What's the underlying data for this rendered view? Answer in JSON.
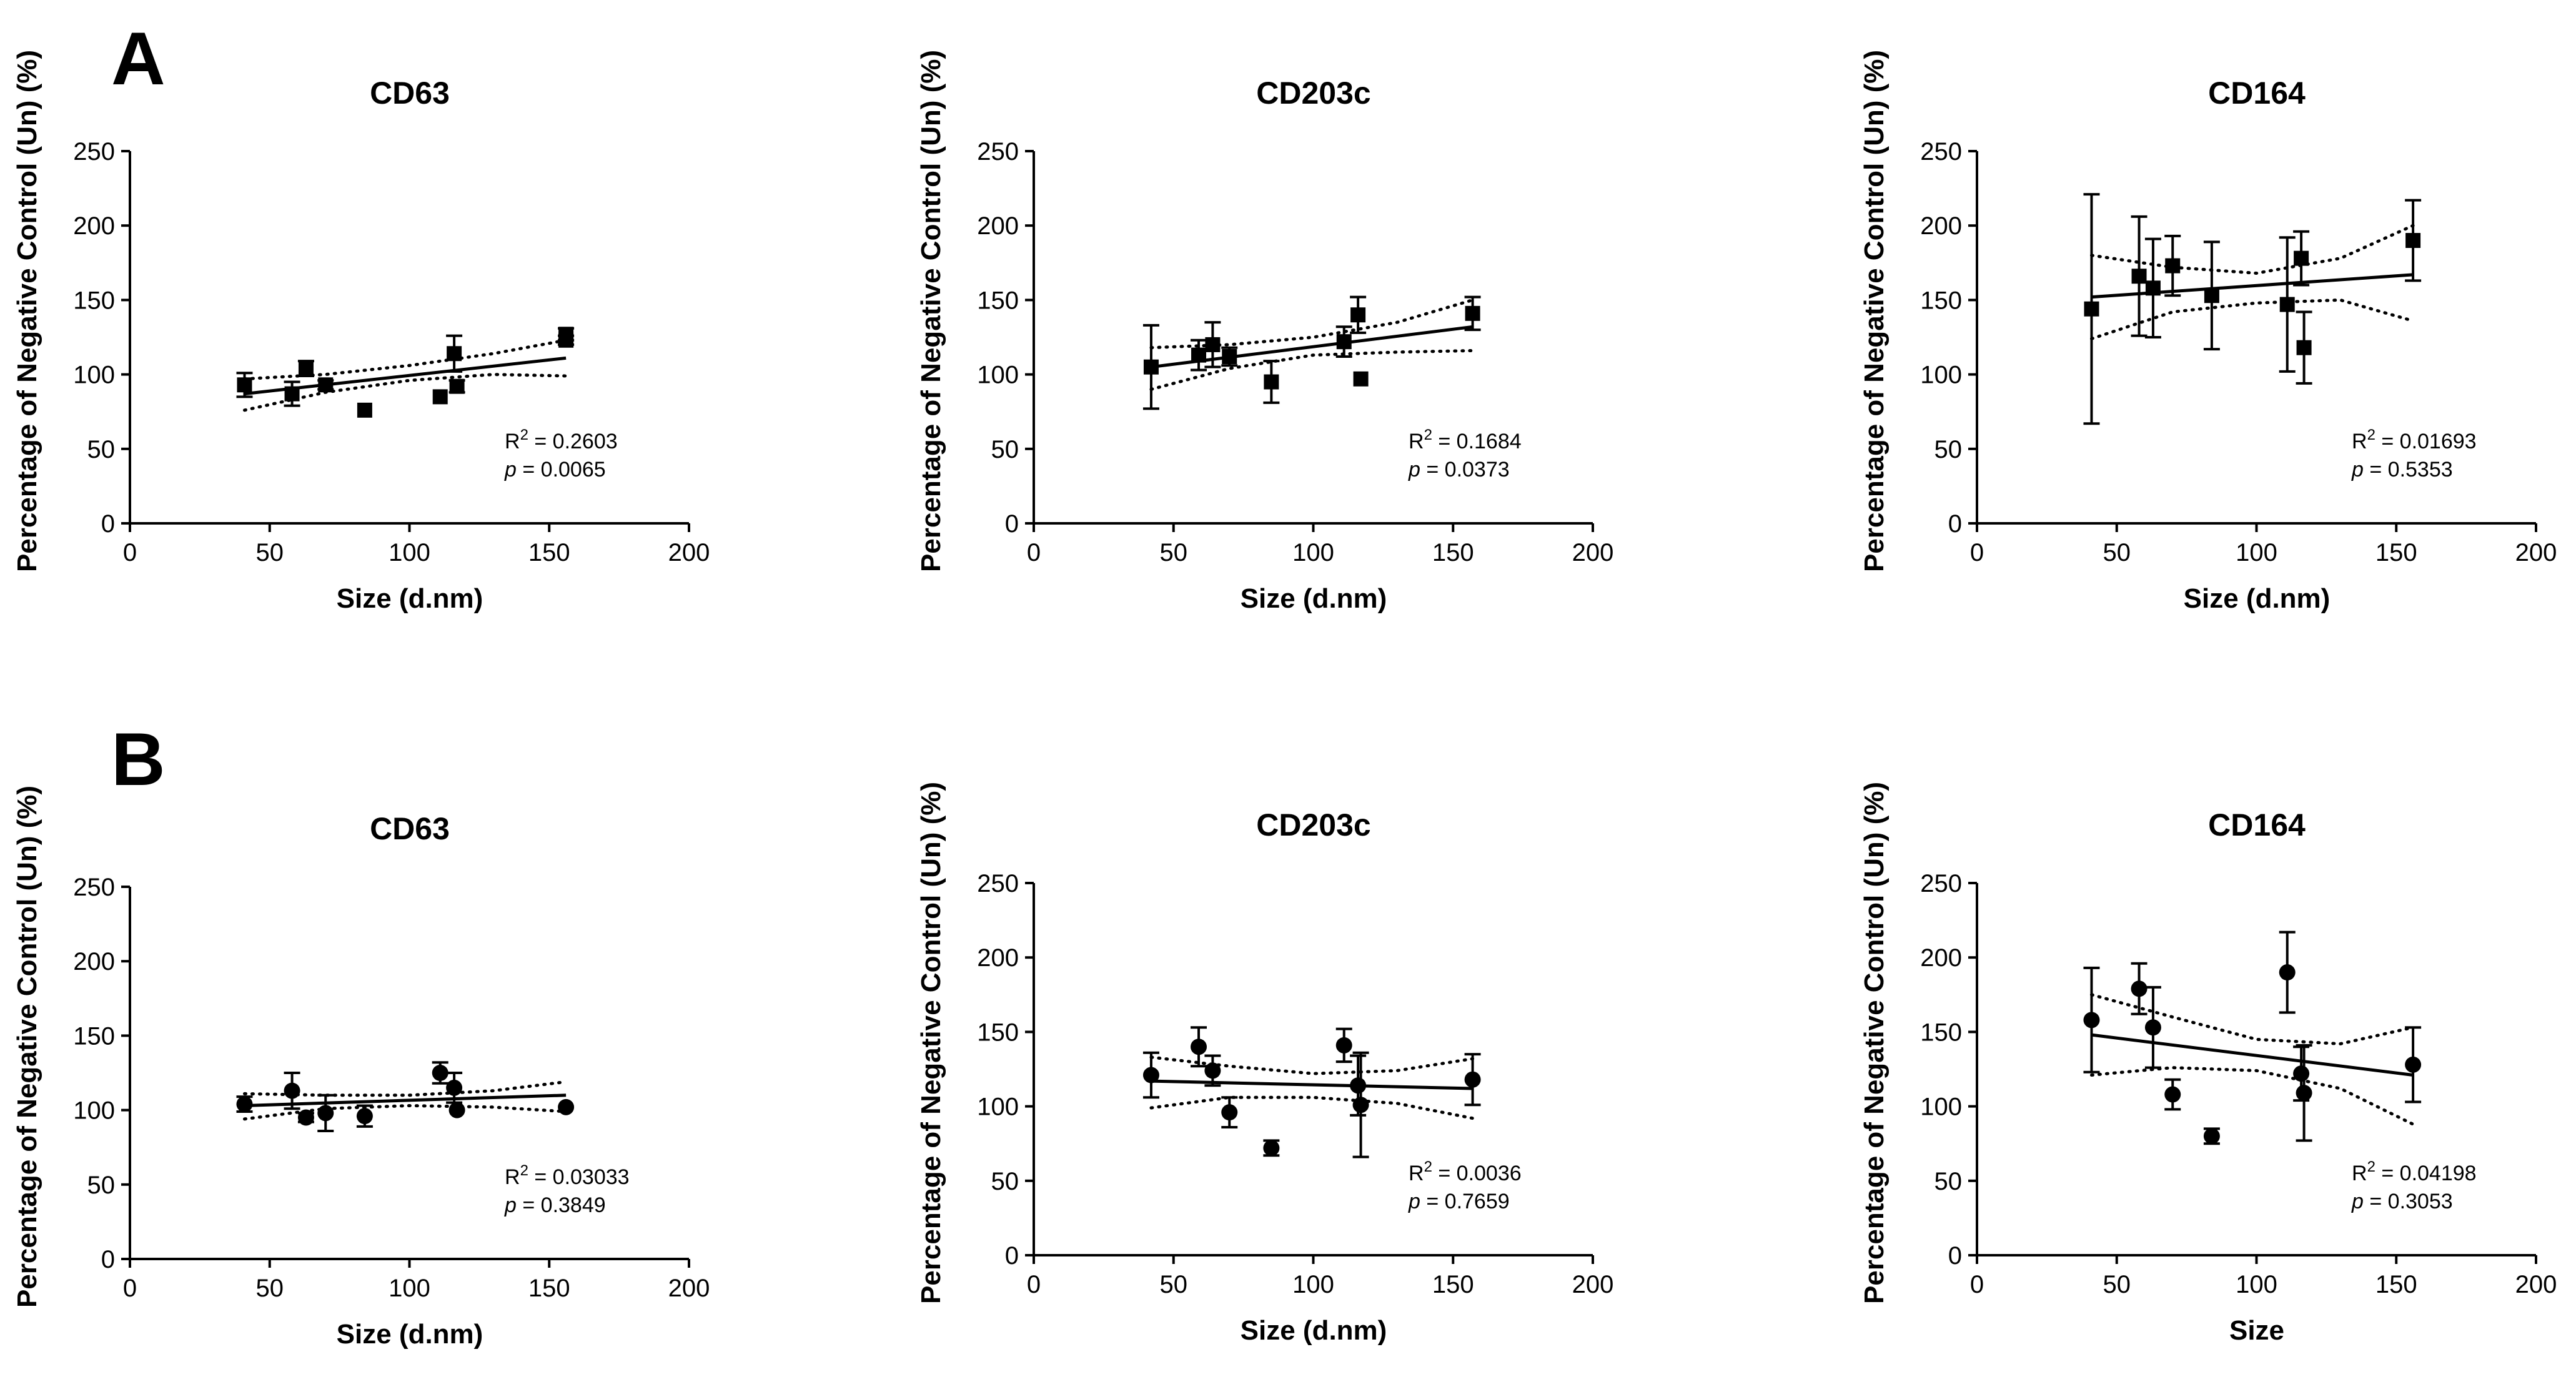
{
  "panels": [
    {
      "letter": "A"
    },
    {
      "letter": "B"
    }
  ],
  "chart_data": [
    {
      "type": "scatter",
      "panel": "A",
      "marker": "square",
      "title": "CD63",
      "xlabel": "Size (d.nm)",
      "ylabel": "Percentage of Negative Control (Un) (%)",
      "xlim": [
        0,
        200
      ],
      "ylim": [
        0,
        250
      ],
      "xticks": [
        0,
        50,
        100,
        150,
        200
      ],
      "yticks": [
        0,
        50,
        100,
        150,
        200,
        250
      ],
      "r2": "= 0.2603",
      "p": "= 0.0065",
      "points": [
        {
          "x": 41,
          "y": 93,
          "err": 8
        },
        {
          "x": 58,
          "y": 87,
          "err": 8
        },
        {
          "x": 63,
          "y": 104,
          "err": 5
        },
        {
          "x": 70,
          "y": 93,
          "err": 3
        },
        {
          "x": 84,
          "y": 76,
          "err": 0
        },
        {
          "x": 111,
          "y": 85,
          "err": 0
        },
        {
          "x": 116,
          "y": 114,
          "err": 12
        },
        {
          "x": 117,
          "y": 92,
          "err": 4
        },
        {
          "x": 156,
          "y": 127,
          "err": 4
        },
        {
          "x": 156,
          "y": 123,
          "err": 3
        }
      ],
      "fit": {
        "x": [
          41,
          156
        ],
        "y": [
          87,
          111
        ]
      },
      "ci_upper": {
        "x": [
          41,
          70,
          100,
          130,
          156
        ],
        "y": [
          97,
          100,
          106,
          114,
          123
        ]
      },
      "ci_lower": {
        "x": [
          41,
          70,
          100,
          130,
          156
        ],
        "y": [
          76,
          88,
          96,
          100,
          99
        ]
      }
    },
    {
      "type": "scatter",
      "panel": "A",
      "marker": "square",
      "title": "CD203c",
      "xlabel": "Size (d.nm)",
      "ylabel": "Percentage of Negative Control (Un) (%)",
      "xlim": [
        0,
        200
      ],
      "ylim": [
        0,
        250
      ],
      "xticks": [
        0,
        50,
        100,
        150,
        200
      ],
      "yticks": [
        0,
        50,
        100,
        150,
        200,
        250
      ],
      "r2": "= 0.1684",
      "p": "= 0.0373",
      "points": [
        {
          "x": 42,
          "y": 105,
          "err": 28
        },
        {
          "x": 59,
          "y": 113,
          "err": 10
        },
        {
          "x": 64,
          "y": 120,
          "err": 15
        },
        {
          "x": 70,
          "y": 112,
          "err": 6
        },
        {
          "x": 85,
          "y": 95,
          "err": 14
        },
        {
          "x": 111,
          "y": 122,
          "err": 10
        },
        {
          "x": 116,
          "y": 140,
          "err": 12
        },
        {
          "x": 117,
          "y": 97,
          "err": 0
        },
        {
          "x": 157,
          "y": 141,
          "err": 11
        }
      ],
      "fit": {
        "x": [
          42,
          157
        ],
        "y": [
          105,
          132
        ]
      },
      "ci_upper": {
        "x": [
          42,
          70,
          100,
          130,
          157
        ],
        "y": [
          118,
          120,
          125,
          135,
          150
        ]
      },
      "ci_lower": {
        "x": [
          42,
          70,
          100,
          130,
          157
        ],
        "y": [
          90,
          104,
          113,
          115,
          116
        ]
      }
    },
    {
      "type": "scatter",
      "panel": "A",
      "marker": "square",
      "title": "CD164",
      "xlabel": "Size (d.nm)",
      "ylabel": "Percentage of Negative Control (Un) (%)",
      "xlim": [
        0,
        200
      ],
      "ylim": [
        0,
        250
      ],
      "xticks": [
        0,
        50,
        100,
        150,
        200
      ],
      "yticks": [
        0,
        50,
        100,
        150,
        200,
        250
      ],
      "r2": "= 0.01693",
      "p": "= 0.5353",
      "points": [
        {
          "x": 41,
          "y": 144,
          "err": 77
        },
        {
          "x": 58,
          "y": 166,
          "err": 40
        },
        {
          "x": 63,
          "y": 158,
          "err": 33
        },
        {
          "x": 70,
          "y": 173,
          "err": 20
        },
        {
          "x": 84,
          "y": 153,
          "err": 36
        },
        {
          "x": 111,
          "y": 147,
          "err": 45
        },
        {
          "x": 116,
          "y": 178,
          "err": 18
        },
        {
          "x": 117,
          "y": 118,
          "err": 24
        },
        {
          "x": 156,
          "y": 190,
          "err": 27
        }
      ],
      "fit": {
        "x": [
          41,
          156
        ],
        "y": [
          152,
          167
        ]
      },
      "ci_upper": {
        "x": [
          41,
          70,
          100,
          130,
          156
        ],
        "y": [
          180,
          172,
          168,
          178,
          200
        ]
      },
      "ci_lower": {
        "x": [
          41,
          70,
          100,
          130,
          156
        ],
        "y": [
          124,
          142,
          148,
          150,
          136
        ]
      }
    },
    {
      "type": "scatter",
      "panel": "B",
      "marker": "circle",
      "title": "CD63",
      "xlabel": "Size (d.nm)",
      "ylabel": "Percentage of Negative Control (Un) (%)",
      "xlim": [
        0,
        200
      ],
      "ylim": [
        0,
        250
      ],
      "xticks": [
        0,
        50,
        100,
        150,
        200
      ],
      "yticks": [
        0,
        50,
        100,
        150,
        200,
        250
      ],
      "r2": "= 0.03033",
      "p": "= 0.3849",
      "points": [
        {
          "x": 41,
          "y": 104,
          "err": 5
        },
        {
          "x": 58,
          "y": 113,
          "err": 12
        },
        {
          "x": 63,
          "y": 95,
          "err": 3
        },
        {
          "x": 70,
          "y": 98,
          "err": 12
        },
        {
          "x": 84,
          "y": 96,
          "err": 7
        },
        {
          "x": 111,
          "y": 125,
          "err": 7
        },
        {
          "x": 116,
          "y": 115,
          "err": 10
        },
        {
          "x": 117,
          "y": 100,
          "err": 0
        },
        {
          "x": 156,
          "y": 102,
          "err": 0
        }
      ],
      "fit": {
        "x": [
          41,
          156
        ],
        "y": [
          103,
          110
        ]
      },
      "ci_upper": {
        "x": [
          41,
          70,
          100,
          130,
          156
        ],
        "y": [
          111,
          110,
          110,
          113,
          119
        ]
      },
      "ci_lower": {
        "x": [
          41,
          70,
          100,
          130,
          156
        ],
        "y": [
          94,
          101,
          103,
          102,
          99
        ]
      }
    },
    {
      "type": "scatter",
      "panel": "B",
      "marker": "circle",
      "title": "CD203c",
      "xlabel": "Size (d.nm)",
      "ylabel": "Percentage of Negative Control (Un) (%)",
      "xlim": [
        0,
        200
      ],
      "ylim": [
        0,
        250
      ],
      "xticks": [
        0,
        50,
        100,
        150,
        200
      ],
      "yticks": [
        0,
        50,
        100,
        150,
        200,
        250
      ],
      "r2": "= 0.0036",
      "p": "= 0.7659",
      "points": [
        {
          "x": 42,
          "y": 121,
          "err": 15
        },
        {
          "x": 59,
          "y": 140,
          "err": 13
        },
        {
          "x": 64,
          "y": 124,
          "err": 10
        },
        {
          "x": 70,
          "y": 96,
          "err": 10
        },
        {
          "x": 85,
          "y": 72,
          "err": 5
        },
        {
          "x": 111,
          "y": 141,
          "err": 11
        },
        {
          "x": 116,
          "y": 114,
          "err": 20
        },
        {
          "x": 117,
          "y": 101,
          "err": 35
        },
        {
          "x": 157,
          "y": 118,
          "err": 17
        }
      ],
      "fit": {
        "x": [
          42,
          157
        ],
        "y": [
          117,
          112
        ]
      },
      "ci_upper": {
        "x": [
          42,
          70,
          100,
          130,
          157
        ],
        "y": [
          133,
          127,
          122,
          124,
          132
        ]
      },
      "ci_lower": {
        "x": [
          42,
          70,
          100,
          130,
          157
        ],
        "y": [
          99,
          106,
          106,
          102,
          92
        ]
      }
    },
    {
      "type": "scatter",
      "panel": "B",
      "marker": "circle",
      "title": "CD164",
      "xlabel": "Size",
      "ylabel": "Percentage of Negative Control (Un) (%)",
      "xlim": [
        0,
        200
      ],
      "ylim": [
        0,
        250
      ],
      "xticks": [
        0,
        50,
        100,
        150,
        200
      ],
      "yticks": [
        0,
        50,
        100,
        150,
        200,
        250
      ],
      "r2": "= 0.04198",
      "p": "= 0.3053",
      "points": [
        {
          "x": 41,
          "y": 158,
          "err": 35
        },
        {
          "x": 58,
          "y": 179,
          "err": 17
        },
        {
          "x": 63,
          "y": 153,
          "err": 27
        },
        {
          "x": 70,
          "y": 108,
          "err": 10
        },
        {
          "x": 84,
          "y": 80,
          "err": 5
        },
        {
          "x": 111,
          "y": 190,
          "err": 27
        },
        {
          "x": 116,
          "y": 122,
          "err": 18
        },
        {
          "x": 117,
          "y": 109,
          "err": 32
        },
        {
          "x": 156,
          "y": 128,
          "err": 25
        }
      ],
      "fit": {
        "x": [
          41,
          156
        ],
        "y": [
          148,
          121
        ]
      },
      "ci_upper": {
        "x": [
          41,
          70,
          100,
          130,
          156
        ],
        "y": [
          175,
          160,
          145,
          142,
          153
        ]
      },
      "ci_lower": {
        "x": [
          41,
          70,
          100,
          130,
          156
        ],
        "y": [
          121,
          126,
          124,
          112,
          88
        ]
      }
    }
  ]
}
